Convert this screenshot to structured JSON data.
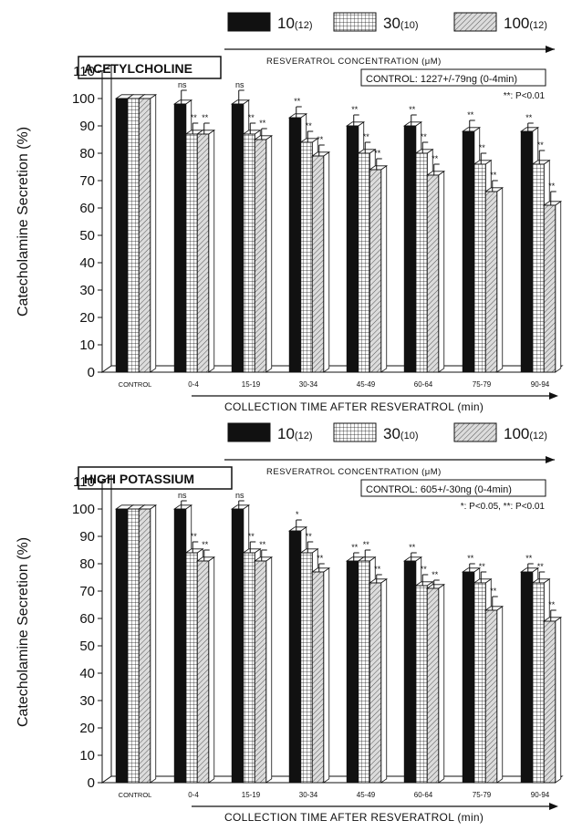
{
  "chart_data": [
    {
      "type": "bar",
      "title": "ACETYLCHOLINE",
      "ylabel": "Catecholamine Secretion (%)",
      "xlabel": "COLLECTION TIME AFTER RESVERATROL (min)",
      "legend_caption": "RESVERATROL CONCENTRATION (μM)",
      "legend_placement": "top",
      "control_note": "CONTROL: 1227+/-79ng (0-4min)",
      "significance_note": "**: P<0.01",
      "ylim": [
        0,
        110
      ],
      "yticks": [
        "0",
        "10",
        "20",
        "30",
        "40",
        "50",
        "60",
        "70",
        "80",
        "90",
        "100",
        "110"
      ],
      "categories": [
        "CONTROL",
        "0-4",
        "15-19",
        "30-34",
        "45-49",
        "60-64",
        "75-79",
        "90-94"
      ],
      "series": [
        {
          "name": "10",
          "n": "(12)",
          "values": [
            100,
            98,
            98,
            93,
            90,
            90,
            88,
            88
          ],
          "errors": [
            0,
            5,
            5,
            4,
            4,
            4,
            4,
            3
          ],
          "marks": [
            "",
            "ns",
            "ns",
            "**",
            "**",
            "**",
            "**",
            "**"
          ]
        },
        {
          "name": "30",
          "n": "(10)",
          "values": [
            100,
            87,
            87,
            84,
            80,
            80,
            76,
            76
          ],
          "errors": [
            0,
            4,
            4,
            4,
            4,
            4,
            4,
            5
          ],
          "marks": [
            "",
            "**",
            "**",
            "**",
            "**",
            "**",
            "**",
            "**"
          ]
        },
        {
          "name": "100",
          "n": "(12)",
          "values": [
            100,
            87,
            85,
            79,
            74,
            72,
            66,
            61
          ],
          "errors": [
            0,
            4,
            4,
            4,
            4,
            4,
            4,
            5
          ],
          "marks": [
            "",
            "**",
            "**",
            "**",
            "**",
            "**",
            "**",
            "**"
          ]
        }
      ]
    },
    {
      "type": "bar",
      "title": "HIGH POTASSIUM",
      "ylabel": "Catecholamine Secretion (%)",
      "xlabel": "COLLECTION TIME AFTER RESVERATROL (min)",
      "legend_caption": "RESVERATROL CONCENTRATION (μM)",
      "legend_placement": "top",
      "control_note": "CONTROL: 605+/-30ng (0-4min)",
      "significance_note": "*: P<0.05, **: P<0.01",
      "ylim": [
        0,
        110
      ],
      "yticks": [
        "0",
        "10",
        "20",
        "30",
        "40",
        "50",
        "60",
        "70",
        "80",
        "90",
        "100",
        "110"
      ],
      "categories": [
        "CONTROL",
        "0-4",
        "15-19",
        "30-34",
        "45-49",
        "60-64",
        "75-79",
        "90-94"
      ],
      "series": [
        {
          "name": "10",
          "n": "(12)",
          "values": [
            100,
            100,
            100,
            92,
            81,
            81,
            77,
            77
          ],
          "errors": [
            0,
            3,
            3,
            4,
            3,
            3,
            3,
            3
          ],
          "marks": [
            "",
            "ns",
            "ns",
            "*",
            "**",
            "**",
            "**",
            "**"
          ]
        },
        {
          "name": "30",
          "n": "(10)",
          "values": [
            100,
            84,
            84,
            84,
            81,
            72,
            73,
            73
          ],
          "errors": [
            0,
            4,
            4,
            4,
            4,
            4,
            4,
            4
          ],
          "marks": [
            "",
            "**",
            "**",
            "**",
            "**",
            "**",
            "**",
            "**"
          ]
        },
        {
          "name": "100",
          "n": "(12)",
          "values": [
            100,
            81,
            81,
            77,
            73,
            71,
            63,
            59
          ],
          "errors": [
            0,
            4,
            4,
            3,
            3,
            3,
            5,
            4
          ],
          "marks": [
            "",
            "**",
            "**",
            "**",
            "**",
            "**",
            "**",
            "**"
          ]
        }
      ]
    }
  ],
  "colors": {
    "ink": "#111111",
    "bar10": "#111111",
    "bar30": "#ffffff",
    "bar100": "#d8d8d8",
    "face": "#ffffff"
  }
}
